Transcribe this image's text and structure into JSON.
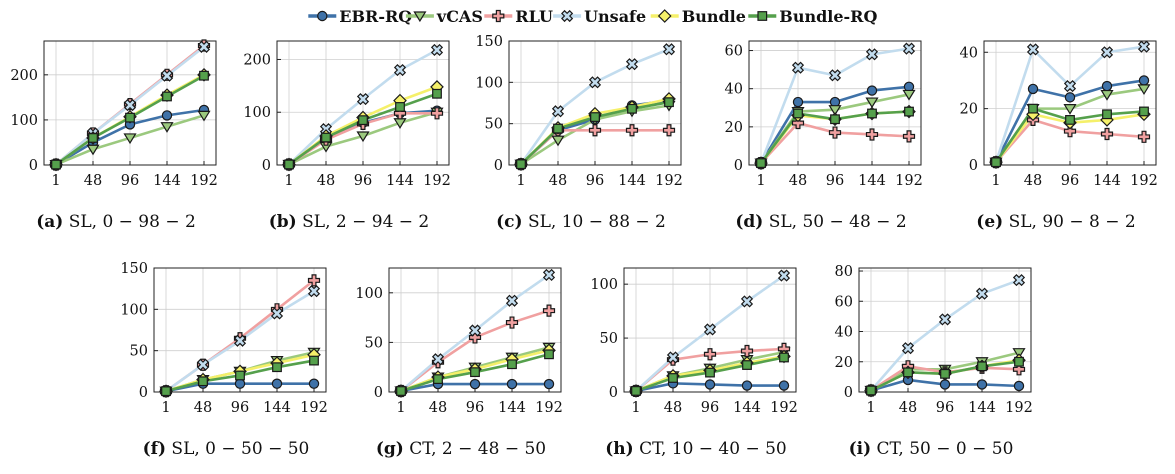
{
  "legend": [
    {
      "name": "EBR-RQ",
      "color": "#3f72a8",
      "marker": "circle"
    },
    {
      "name": "vCAS",
      "color": "#9bc97e",
      "marker": "triangle-down"
    },
    {
      "name": "RLU",
      "color": "#f0a0a0",
      "marker": "plus"
    },
    {
      "name": "Unsafe",
      "color": "#c2dcee",
      "marker": "cross"
    },
    {
      "name": "Bundle",
      "color": "#f5f06a",
      "marker": "diamond"
    },
    {
      "name": "Bundle-RQ",
      "color": "#55a04c",
      "marker": "square"
    }
  ],
  "chart_data": [
    {
      "type": "line",
      "caption_letter": "(a)",
      "caption_text": "SL, 0 − 98 − 2",
      "categories": [
        "1",
        "48",
        "96",
        "144",
        "192"
      ],
      "ylim": [
        0,
        275
      ],
      "yticks": [
        0,
        100,
        200
      ],
      "series": [
        {
          "name": "EBR-RQ",
          "values": [
            1,
            50,
            90,
            110,
            122
          ]
        },
        {
          "name": "vCAS",
          "values": [
            1,
            35,
            60,
            85,
            110
          ]
        },
        {
          "name": "RLU",
          "values": [
            1,
            70,
            135,
            200,
            265
          ]
        },
        {
          "name": "Unsafe",
          "values": [
            1,
            70,
            133,
            198,
            262
          ]
        },
        {
          "name": "Bundle",
          "values": [
            1,
            60,
            107,
            155,
            200
          ]
        },
        {
          "name": "Bundle-RQ",
          "values": [
            1,
            60,
            105,
            152,
            198
          ]
        }
      ]
    },
    {
      "type": "line",
      "caption_letter": "(b)",
      "caption_text": "SL, 2 − 94 − 2",
      "categories": [
        "1",
        "48",
        "96",
        "144",
        "192"
      ],
      "ylim": [
        0,
        235
      ],
      "yticks": [
        0,
        100,
        200
      ],
      "series": [
        {
          "name": "EBR-RQ",
          "values": [
            1,
            50,
            80,
            98,
            103
          ]
        },
        {
          "name": "vCAS",
          "values": [
            1,
            35,
            55,
            80,
            100
          ]
        },
        {
          "name": "RLU",
          "values": [
            1,
            48,
            78,
            98,
            98
          ]
        },
        {
          "name": "Unsafe",
          "values": [
            1,
            68,
            125,
            180,
            218
          ]
        },
        {
          "name": "Bundle",
          "values": [
            1,
            55,
            90,
            122,
            148
          ]
        },
        {
          "name": "Bundle-RQ",
          "values": [
            1,
            52,
            85,
            110,
            135
          ]
        }
      ]
    },
    {
      "type": "line",
      "caption_letter": "(c)",
      "caption_text": "SL, 10 − 88 − 2",
      "categories": [
        "1",
        "48",
        "96",
        "144",
        "192"
      ],
      "ylim": [
        0,
        150
      ],
      "yticks": [
        0,
        50,
        100,
        150
      ],
      "series": [
        {
          "name": "EBR-RQ",
          "values": [
            1,
            42,
            55,
            72,
            78
          ]
        },
        {
          "name": "vCAS",
          "values": [
            1,
            30,
            55,
            65,
            72
          ]
        },
        {
          "name": "RLU",
          "values": [
            1,
            42,
            42,
            42,
            42
          ]
        },
        {
          "name": "Unsafe",
          "values": [
            1,
            65,
            100,
            122,
            140
          ]
        },
        {
          "name": "Bundle",
          "values": [
            1,
            45,
            62,
            70,
            80
          ]
        },
        {
          "name": "Bundle-RQ",
          "values": [
            1,
            44,
            58,
            68,
            76
          ]
        }
      ]
    },
    {
      "type": "line",
      "caption_letter": "(d)",
      "caption_text": "SL, 50 − 48 − 2",
      "categories": [
        "1",
        "48",
        "96",
        "144",
        "192"
      ],
      "ylim": [
        0,
        65
      ],
      "yticks": [
        0,
        20,
        40,
        60
      ],
      "series": [
        {
          "name": "EBR-RQ",
          "values": [
            1,
            33,
            33,
            39,
            41
          ]
        },
        {
          "name": "vCAS",
          "values": [
            1,
            28,
            29,
            33,
            37
          ]
        },
        {
          "name": "RLU",
          "values": [
            1,
            22,
            17,
            16,
            15
          ]
        },
        {
          "name": "Unsafe",
          "values": [
            1,
            51,
            47,
            58,
            61
          ]
        },
        {
          "name": "Bundle",
          "values": [
            1,
            26,
            24,
            27,
            28
          ]
        },
        {
          "name": "Bundle-RQ",
          "values": [
            1,
            27,
            24,
            27,
            28
          ]
        }
      ]
    },
    {
      "type": "line",
      "caption_letter": "(e)",
      "caption_text": "SL, 90 − 8 − 2",
      "categories": [
        "1",
        "48",
        "96",
        "144",
        "192"
      ],
      "ylim": [
        0,
        44
      ],
      "yticks": [
        0,
        20,
        40
      ],
      "series": [
        {
          "name": "EBR-RQ",
          "values": [
            1,
            27,
            24,
            28,
            30
          ]
        },
        {
          "name": "vCAS",
          "values": [
            1,
            20,
            20,
            25,
            27
          ]
        },
        {
          "name": "RLU",
          "values": [
            1,
            16,
            12,
            11,
            10
          ]
        },
        {
          "name": "Unsafe",
          "values": [
            1,
            41,
            28,
            40,
            42
          ]
        },
        {
          "name": "Bundle",
          "values": [
            1,
            18,
            15,
            16,
            18
          ]
        },
        {
          "name": "Bundle-RQ",
          "values": [
            1,
            20,
            16,
            18,
            19
          ]
        }
      ]
    },
    {
      "type": "line",
      "caption_letter": "(f)",
      "caption_text": "SL, 0 − 50 − 50",
      "categories": [
        "1",
        "48",
        "96",
        "144",
        "192"
      ],
      "ylim": [
        0,
        150
      ],
      "yticks": [
        0,
        50,
        100,
        150
      ],
      "series": [
        {
          "name": "EBR-RQ",
          "values": [
            1,
            10,
            10,
            10,
            10
          ]
        },
        {
          "name": "vCAS",
          "values": [
            1,
            15,
            25,
            38,
            48
          ]
        },
        {
          "name": "RLU",
          "values": [
            1,
            33,
            65,
            100,
            135
          ]
        },
        {
          "name": "Unsafe",
          "values": [
            1,
            33,
            62,
            95,
            122
          ]
        },
        {
          "name": "Bundle",
          "values": [
            1,
            15,
            25,
            35,
            45
          ]
        },
        {
          "name": "Bundle-RQ",
          "values": [
            1,
            13,
            20,
            30,
            38
          ]
        }
      ]
    },
    {
      "type": "line",
      "caption_letter": "(g)",
      "caption_text": "CT, 2 − 48 − 50",
      "categories": [
        "1",
        "48",
        "96",
        "144",
        "192"
      ],
      "ylim": [
        0,
        125
      ],
      "yticks": [
        0,
        50,
        100
      ],
      "series": [
        {
          "name": "EBR-RQ",
          "values": [
            1,
            8,
            8,
            8,
            8
          ]
        },
        {
          "name": "vCAS",
          "values": [
            1,
            15,
            25,
            35,
            45
          ]
        },
        {
          "name": "RLU",
          "values": [
            1,
            30,
            55,
            70,
            82
          ]
        },
        {
          "name": "Unsafe",
          "values": [
            1,
            33,
            62,
            92,
            118
          ]
        },
        {
          "name": "Bundle",
          "values": [
            1,
            15,
            23,
            33,
            42
          ]
        },
        {
          "name": "Bundle-RQ",
          "values": [
            1,
            13,
            20,
            28,
            38
          ]
        }
      ]
    },
    {
      "type": "line",
      "caption_letter": "(h)",
      "caption_text": "CT, 10 − 40 − 50",
      "categories": [
        "1",
        "48",
        "96",
        "144",
        "192"
      ],
      "ylim": [
        0,
        115
      ],
      "yticks": [
        0,
        50,
        100
      ],
      "series": [
        {
          "name": "EBR-RQ",
          "values": [
            1,
            8,
            7,
            6,
            6
          ]
        },
        {
          "name": "vCAS",
          "values": [
            1,
            15,
            22,
            30,
            37
          ]
        },
        {
          "name": "RLU",
          "values": [
            1,
            30,
            35,
            38,
            40
          ]
        },
        {
          "name": "Unsafe",
          "values": [
            1,
            32,
            58,
            84,
            108
          ]
        },
        {
          "name": "Bundle",
          "values": [
            1,
            15,
            20,
            27,
            33
          ]
        },
        {
          "name": "Bundle-RQ",
          "values": [
            1,
            13,
            18,
            25,
            32
          ]
        }
      ]
    },
    {
      "type": "line",
      "caption_letter": "(i)",
      "caption_text": "CT, 50 − 0 − 50",
      "categories": [
        "1",
        "48",
        "96",
        "144",
        "192"
      ],
      "ylim": [
        0,
        82
      ],
      "yticks": [
        0,
        20,
        40,
        60,
        80
      ],
      "series": [
        {
          "name": "EBR-RQ",
          "values": [
            1,
            8,
            5,
            5,
            4
          ]
        },
        {
          "name": "vCAS",
          "values": [
            1,
            15,
            15,
            20,
            26
          ]
        },
        {
          "name": "RLU",
          "values": [
            1,
            17,
            13,
            16,
            15
          ]
        },
        {
          "name": "Unsafe",
          "values": [
            1,
            29,
            48,
            65,
            74
          ]
        },
        {
          "name": "Bundle",
          "values": [
            1,
            13,
            12,
            17,
            21
          ]
        },
        {
          "name": "Bundle-RQ",
          "values": [
            1,
            13,
            12,
            17,
            20
          ]
        }
      ]
    }
  ]
}
